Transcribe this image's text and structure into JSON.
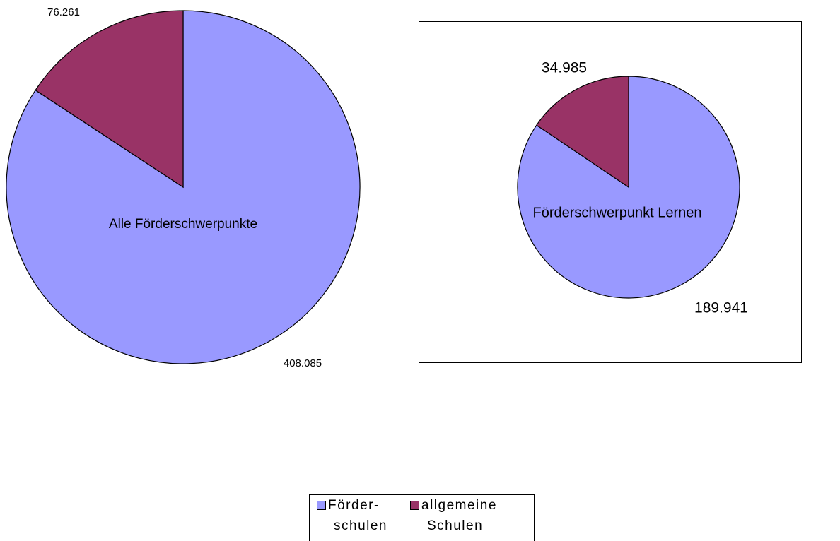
{
  "chart_data": [
    {
      "type": "pie",
      "title": "Alle Förderschwerpunkte",
      "categories": [
        "Förder- schulen",
        "allgemeine Schulen"
      ],
      "values": [
        408085,
        76261
      ],
      "value_labels": [
        "408.085",
        "76.261"
      ],
      "colors": [
        "#9999ff",
        "#993366"
      ]
    },
    {
      "type": "pie",
      "title": "Förderschwerpunkt Lernen",
      "categories": [
        "Förder- schulen",
        "allgemeine Schulen"
      ],
      "values": [
        189941,
        34985
      ],
      "value_labels": [
        "189.941",
        "34.985"
      ],
      "colors": [
        "#9999ff",
        "#993366"
      ]
    }
  ]
}
